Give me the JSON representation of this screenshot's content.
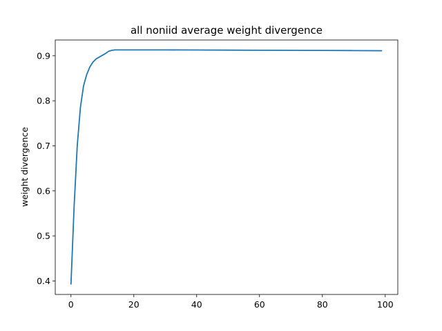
{
  "chart_data": {
    "type": "line",
    "title": "all noniid average weight divergence",
    "xlabel": "",
    "ylabel": "weight divergence",
    "xlim": [
      -5,
      104
    ],
    "ylim": [
      0.37,
      0.935
    ],
    "xticks": [
      0,
      20,
      40,
      60,
      80,
      100
    ],
    "yticks": [
      0.4,
      0.5,
      0.6,
      0.7,
      0.8,
      0.9
    ],
    "grid": false,
    "series": [
      {
        "color": "#1f77b4",
        "x": [
          0,
          1,
          2,
          3,
          4,
          5,
          6,
          7,
          8,
          9,
          10,
          11,
          12,
          13,
          14,
          15,
          20,
          30,
          40,
          50,
          60,
          70,
          80,
          90,
          99
        ],
        "y": [
          0.392,
          0.565,
          0.7,
          0.785,
          0.833,
          0.858,
          0.875,
          0.886,
          0.893,
          0.897,
          0.901,
          0.905,
          0.91,
          0.912,
          0.913,
          0.913,
          0.913,
          0.913,
          0.9128,
          0.9125,
          0.9122,
          0.912,
          0.9118,
          0.9115,
          0.9112
        ]
      }
    ]
  }
}
